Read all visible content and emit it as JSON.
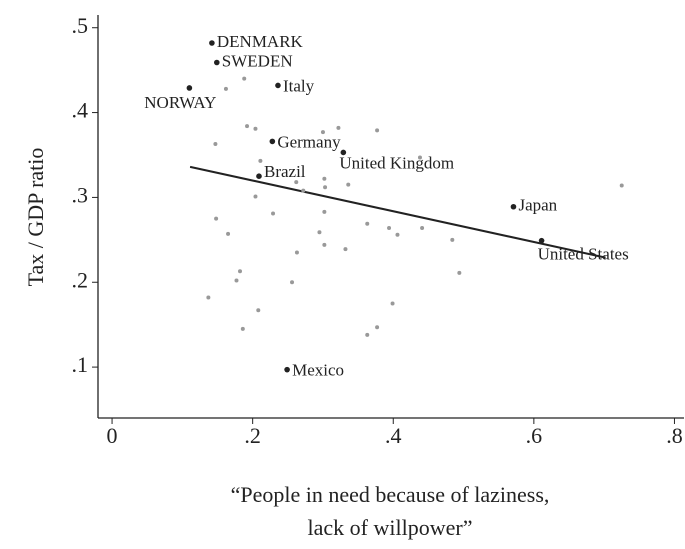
{
  "chart_data": {
    "type": "scatter",
    "ylabel": "Tax / GDP ratio",
    "xlabel": [
      "“People in need because of laziness,",
      "lack of willpower”"
    ],
    "xlim": [
      -0.02,
      0.815
    ],
    "ylim": [
      0.04,
      0.515
    ],
    "xticks": [
      0,
      {
        "value": 0.2,
        "label": ".2"
      },
      {
        "value": 0.4,
        "label": ".4"
      },
      {
        "value": 0.6,
        "label": ".6"
      },
      {
        "value": 0.8,
        "label": ".8"
      }
    ],
    "yticks": [
      {
        "value": 0.1,
        "label": ".1"
      },
      {
        "value": 0.2,
        "label": ".2"
      },
      {
        "value": 0.3,
        "label": ".3"
      },
      {
        "value": 0.4,
        "label": ".4"
      },
      {
        "value": 0.5,
        "label": ".5"
      }
    ],
    "series": [
      {
        "color": "#999999",
        "x": [
          0.188,
          0.162,
          0.192,
          0.204,
          0.147,
          0.377,
          0.322,
          0.3,
          0.211,
          0.262,
          0.272,
          0.302,
          0.336,
          0.303,
          0.438,
          0.725,
          0.204,
          0.302,
          0.229,
          0.363,
          0.394,
          0.406,
          0.441,
          0.484,
          0.295,
          0.148,
          0.165,
          0.263,
          0.494,
          0.182,
          0.177,
          0.256,
          0.302,
          0.332,
          0.137,
          0.208,
          0.399,
          0.186,
          0.377,
          0.363
        ],
        "values": [
          0.44,
          0.428,
          0.384,
          0.381,
          0.363,
          0.379,
          0.382,
          0.377,
          0.343,
          0.318,
          0.308,
          0.322,
          0.315,
          0.312,
          0.347,
          0.314,
          0.301,
          0.283,
          0.281,
          0.269,
          0.264,
          0.256,
          0.264,
          0.25,
          0.259,
          0.275,
          0.257,
          0.235,
          0.211,
          0.213,
          0.202,
          0.2,
          0.244,
          0.239,
          0.182,
          0.167,
          0.175,
          0.145,
          0.147,
          0.138
        ]
      },
      {
        "color": "#222222",
        "labels": [
          "DENMARK",
          "SWEDEN",
          "NORWAY",
          "Italy",
          "Germany",
          "Brazil",
          "United Kingdom",
          "Japan",
          "United States",
          "Mexico"
        ],
        "x": [
          0.142,
          0.149,
          0.11,
          0.236,
          0.228,
          0.209,
          0.329,
          0.571,
          0.611,
          0.249
        ],
        "values": [
          0.482,
          0.459,
          0.429,
          0.432,
          0.366,
          0.325,
          0.353,
          0.289,
          0.249,
          0.097
        ]
      }
    ],
    "trend_line": {
      "color": "#222222",
      "x": [
        0.111,
        0.702
      ],
      "values": [
        0.336,
        0.229
      ]
    }
  }
}
